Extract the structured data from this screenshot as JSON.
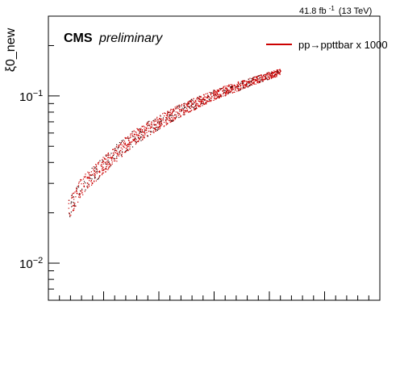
{
  "header": {
    "lumi": "41.8 fb",
    "lumi_exp": "-1",
    "energy": "(13 TeV)"
  },
  "chart_data": {
    "type": "scatter",
    "ylabel": "ξ0_new",
    "yscale": "log",
    "ylim": [
      0.006,
      0.3
    ],
    "xlim": [
      0,
      1
    ],
    "x_tick_labels": [],
    "y_tick_labels": [
      {
        "label": "10",
        "exp": "−1",
        "value": 0.1
      },
      {
        "label": "10",
        "exp": "−2",
        "value": 0.01
      }
    ],
    "annotation": {
      "bold": "CMS",
      "italic": "preliminary"
    },
    "legend": {
      "position": "top-right",
      "entries": [
        "pp→ppttbar x 1000"
      ]
    },
    "series": [
      {
        "name": "pp→ppttbar x 1000",
        "color": "#cc0000",
        "trend": {
          "x": [
            0.06,
            0.1,
            0.15,
            0.2,
            0.25,
            0.3,
            0.35,
            0.4,
            0.45,
            0.5,
            0.55,
            0.6,
            0.65,
            0.7
          ],
          "y": [
            0.021,
            0.029,
            0.036,
            0.045,
            0.055,
            0.064,
            0.073,
            0.083,
            0.092,
            0.102,
            0.111,
            0.12,
            0.13,
            0.14
          ]
        }
      }
    ],
    "grid": false
  }
}
